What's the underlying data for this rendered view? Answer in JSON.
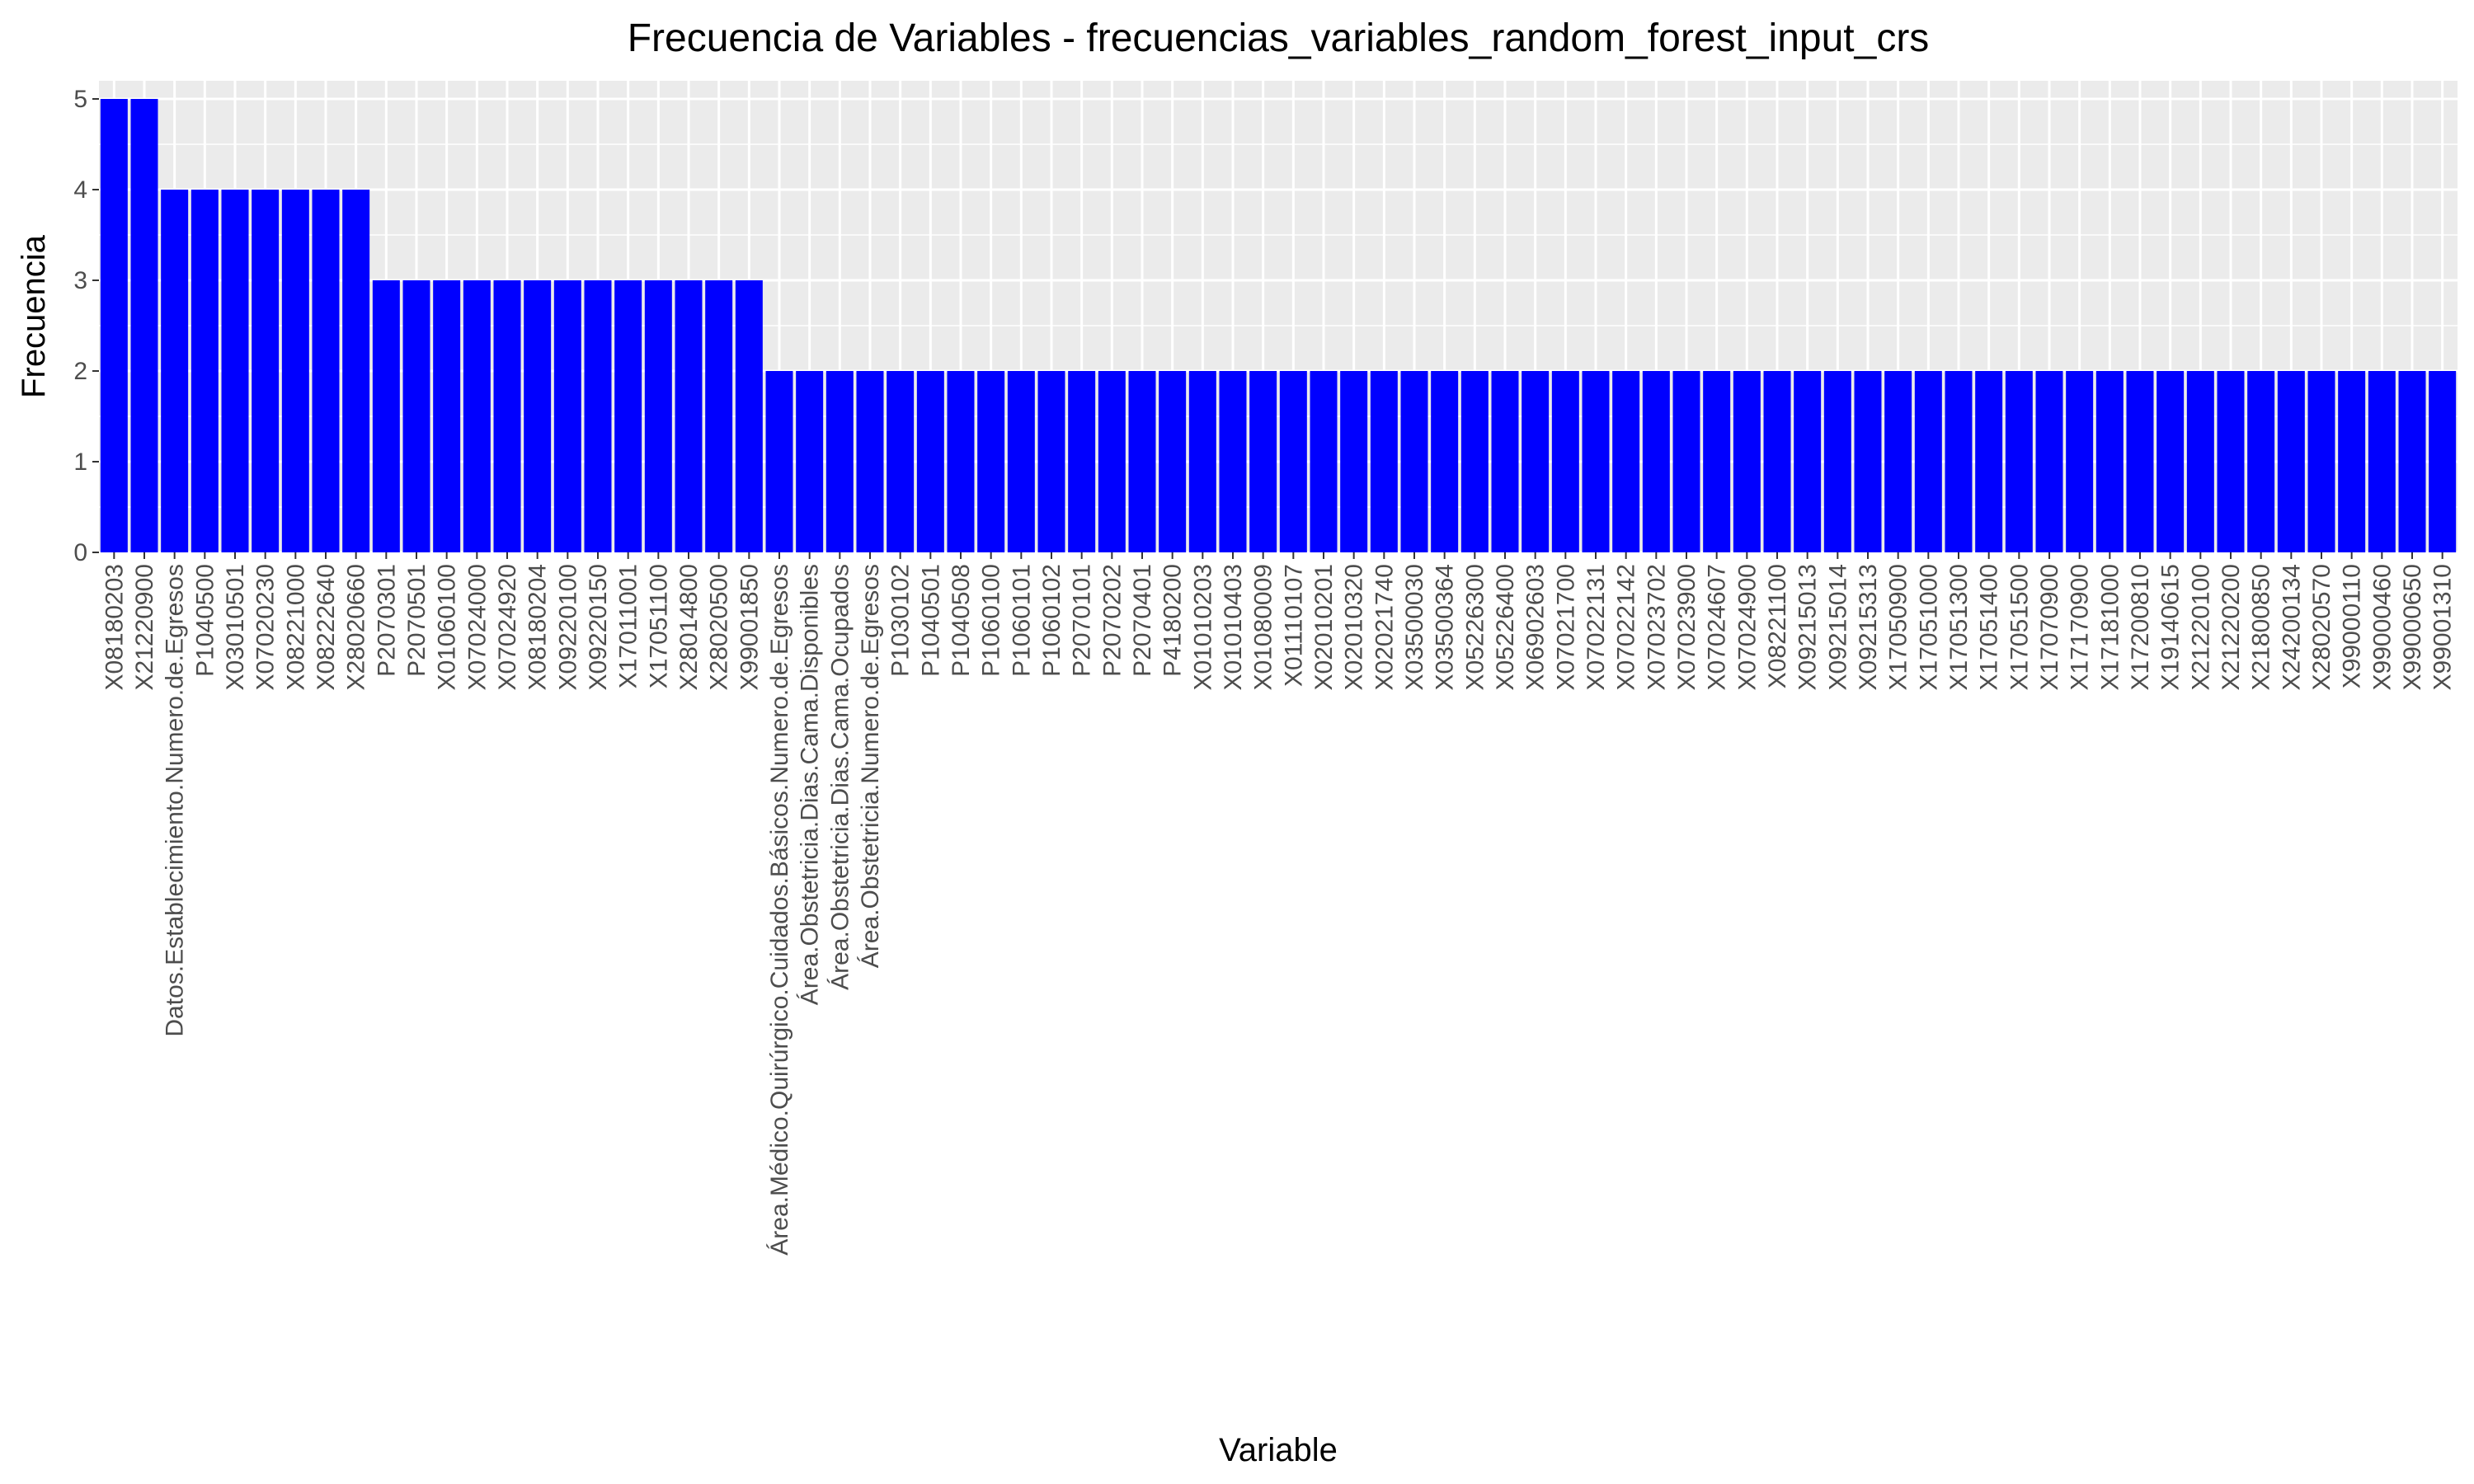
{
  "chart_data": {
    "type": "bar",
    "title": "Frecuencia de Variables - frecuencias_variables_random_forest_input_crs",
    "xlabel": "Variable",
    "ylabel": "Frecuencia",
    "ylim": [
      0,
      5.2
    ],
    "yticks": [
      "0",
      "1",
      "2",
      "3",
      "4",
      "5"
    ],
    "grid": true,
    "bar_color": "#0000ff",
    "panel_color": "#ebebeb",
    "categories": [
      "X08180203",
      "X21220900",
      "Datos.Establecimiento.Numero.de.Egresos",
      "P1040500",
      "X03010501",
      "X07020230",
      "X08221000",
      "X08222640",
      "X28020660",
      "P2070301",
      "P2070501",
      "X01060100",
      "X07024000",
      "X07024920",
      "X08180204",
      "X09220100",
      "X09220150",
      "X17011001",
      "X17051100",
      "X28014800",
      "X28020500",
      "X99001850",
      "Área.Médico.Quirúrgico.Cuidados.Básicos.Numero.de.Egresos",
      "Área.Obstetricia.Dias.Cama.Disponibles",
      "Área.Obstetricia.Dias.Cama.Ocupados",
      "Área.Obstetricia.Numero.de.Egresos",
      "P1030102",
      "P1040501",
      "P1040508",
      "P1060100",
      "P1060101",
      "P1060102",
      "P2070101",
      "P2070202",
      "P2070401",
      "P4180200",
      "X01010203",
      "X01010403",
      "X01080009",
      "X01110107",
      "X02010201",
      "X02010320",
      "X02021740",
      "X03500030",
      "X03500364",
      "X05226300",
      "X05226400",
      "X06902603",
      "X07021700",
      "X07022131",
      "X07022142",
      "X07023702",
      "X07023900",
      "X07024607",
      "X07024900",
      "X08221100",
      "X09215013",
      "X09215014",
      "X09215313",
      "X17050900",
      "X17051000",
      "X17051300",
      "X17051400",
      "X17051500",
      "X17070900",
      "X17170900",
      "X17181000",
      "X17200810",
      "X19140615",
      "X21220100",
      "X21220200",
      "X21800850",
      "X24200134",
      "X28020570",
      "X99000110",
      "X99000460",
      "X99000650",
      "X99001310"
    ],
    "values": [
      5,
      5,
      4,
      4,
      4,
      4,
      4,
      4,
      4,
      3,
      3,
      3,
      3,
      3,
      3,
      3,
      3,
      3,
      3,
      3,
      3,
      3,
      2,
      2,
      2,
      2,
      2,
      2,
      2,
      2,
      2,
      2,
      2,
      2,
      2,
      2,
      2,
      2,
      2,
      2,
      2,
      2,
      2,
      2,
      2,
      2,
      2,
      2,
      2,
      2,
      2,
      2,
      2,
      2,
      2,
      2,
      2,
      2,
      2,
      2,
      2,
      2,
      2,
      2,
      2,
      2,
      2,
      2,
      2,
      2,
      2,
      2,
      2,
      2,
      2,
      2,
      2,
      2
    ]
  }
}
